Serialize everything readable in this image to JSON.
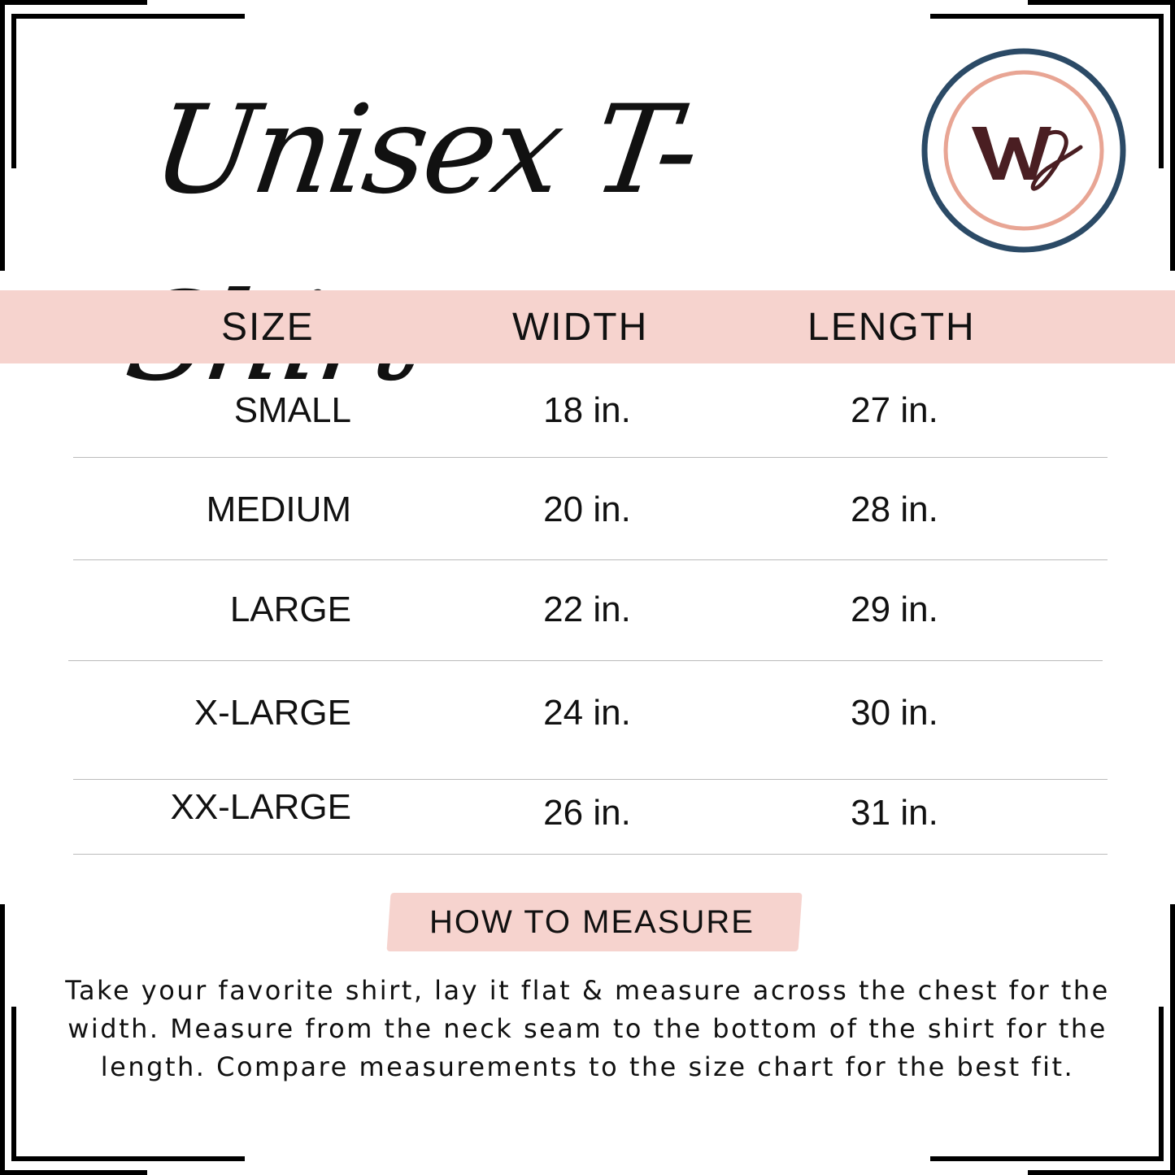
{
  "title": "Unisex T-Shirt",
  "logo": {
    "text": "WD",
    "colors": {
      "outer_ring": "#2b4a66",
      "inner_ring": "#e8a594",
      "monogram": "#4a1e22"
    }
  },
  "table": {
    "header_bg": "#f6d3ce",
    "headers": [
      "SIZE",
      "WIDTH",
      "LENGTH"
    ],
    "rows": [
      {
        "size": "SMALL",
        "width": "18 in.",
        "length": "27 in."
      },
      {
        "size": "MEDIUM",
        "width": "20 in.",
        "length": "28 in."
      },
      {
        "size": "LARGE",
        "width": "22 in.",
        "length": "29 in."
      },
      {
        "size": "X-LARGE",
        "width": "24 in.",
        "length": "30 in."
      },
      {
        "size": "XX-LARGE",
        "width": "26 in.",
        "length": "31 in."
      }
    ]
  },
  "how_to_measure": {
    "heading": "HOW TO MEASURE",
    "text": "Take your favorite shirt, lay it flat & measure across the chest for the width. Measure from the neck seam to the bottom of the shirt for the length. Compare measurements to the size chart for the best fit."
  }
}
